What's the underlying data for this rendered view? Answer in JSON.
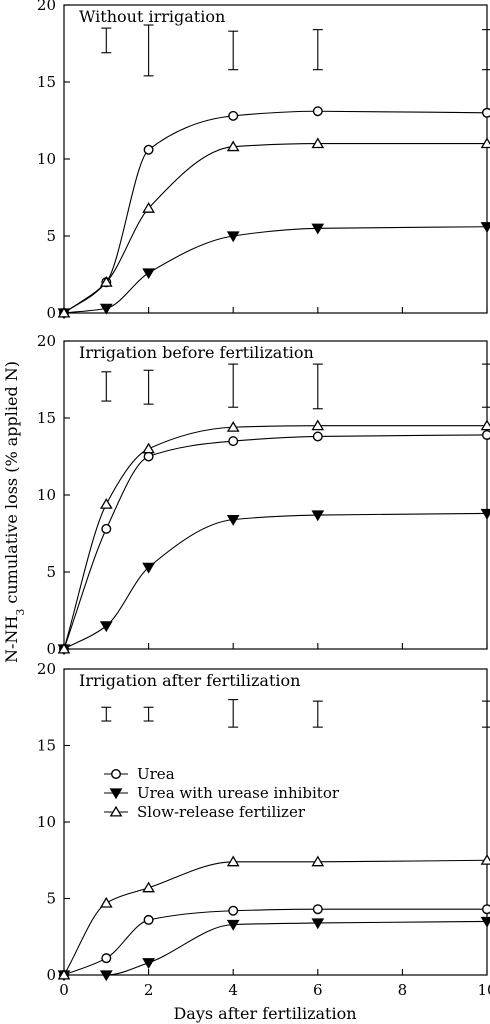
{
  "chart_data": {
    "type": "line",
    "ylabel_main": "N-NH",
    "ylabel_sub": "3",
    "ylabel_rest": " cumulative loss (% applied N)",
    "xlabel": "Days after fertilization",
    "x_ticks": [
      0,
      2,
      4,
      6,
      8,
      10
    ],
    "y_ticks": [
      0,
      5,
      10,
      15,
      20
    ],
    "xlim": [
      0,
      10
    ],
    "ylim": [
      0,
      20
    ],
    "grid": false,
    "legend_position": "lower-left (bottom panel)",
    "series_styles": [
      {
        "name": "Urea",
        "marker": "circle-open"
      },
      {
        "name": "Urea with urease inhibitor",
        "marker": "triangle-down-filled"
      },
      {
        "name": "Slow-release fertilizer",
        "marker": "triangle-up-open"
      }
    ],
    "panels": [
      {
        "title": "Without irrigation",
        "x": [
          0,
          1,
          2,
          4,
          6,
          10
        ],
        "series": [
          {
            "name": "Urea",
            "values": [
              0,
              2.0,
              10.6,
              12.8,
              13.1,
              13.0
            ]
          },
          {
            "name": "Urea with urease inhibitor",
            "values": [
              0,
              0.3,
              2.6,
              5.0,
              5.5,
              5.6
            ]
          },
          {
            "name": "Slow-release fertilizer",
            "values": [
              0,
              2.0,
              6.8,
              10.8,
              11.0,
              11.0
            ]
          }
        ],
        "error_bars": [
          {
            "x": 1,
            "low": 16.9,
            "high": 18.5
          },
          {
            "x": 2,
            "low": 15.4,
            "high": 18.7
          },
          {
            "x": 4,
            "low": 15.8,
            "high": 18.3
          },
          {
            "x": 6,
            "low": 15.8,
            "high": 18.4
          },
          {
            "x": 10,
            "low": 15.8,
            "high": 18.4
          }
        ]
      },
      {
        "title": "Irrigation before fertilization",
        "x": [
          0,
          1,
          2,
          4,
          6,
          10
        ],
        "series": [
          {
            "name": "Urea",
            "values": [
              0,
              7.8,
              12.5,
              13.5,
              13.8,
              13.9
            ]
          },
          {
            "name": "Urea with urease inhibitor",
            "values": [
              0,
              1.5,
              5.3,
              8.4,
              8.7,
              8.8
            ]
          },
          {
            "name": "Slow-release fertilizer",
            "values": [
              0,
              9.4,
              13.0,
              14.4,
              14.5,
              14.5
            ]
          }
        ],
        "error_bars": [
          {
            "x": 1,
            "low": 16.1,
            "high": 18.0
          },
          {
            "x": 2,
            "low": 15.9,
            "high": 18.1
          },
          {
            "x": 4,
            "low": 15.7,
            "high": 18.5
          },
          {
            "x": 6,
            "low": 15.6,
            "high": 18.5
          },
          {
            "x": 10,
            "low": 15.7,
            "high": 18.5
          }
        ]
      },
      {
        "title": "Irrigation after fertilization",
        "x": [
          0,
          1,
          2,
          4,
          6,
          10
        ],
        "series": [
          {
            "name": "Urea",
            "values": [
              0,
              1.1,
              3.6,
              4.2,
              4.3,
              4.3
            ]
          },
          {
            "name": "Urea with urease inhibitor",
            "values": [
              0,
              0.0,
              0.8,
              3.3,
              3.4,
              3.5
            ]
          },
          {
            "name": "Slow-release fertilizer",
            "values": [
              0,
              4.7,
              5.7,
              7.4,
              7.4,
              7.5
            ]
          }
        ],
        "error_bars": [
          {
            "x": 1,
            "low": 16.6,
            "high": 17.5
          },
          {
            "x": 2,
            "low": 16.6,
            "high": 17.5
          },
          {
            "x": 4,
            "low": 16.2,
            "high": 18.0
          },
          {
            "x": 6,
            "low": 16.2,
            "high": 17.9
          },
          {
            "x": 10,
            "low": 16.2,
            "high": 17.9
          }
        ]
      }
    ]
  }
}
